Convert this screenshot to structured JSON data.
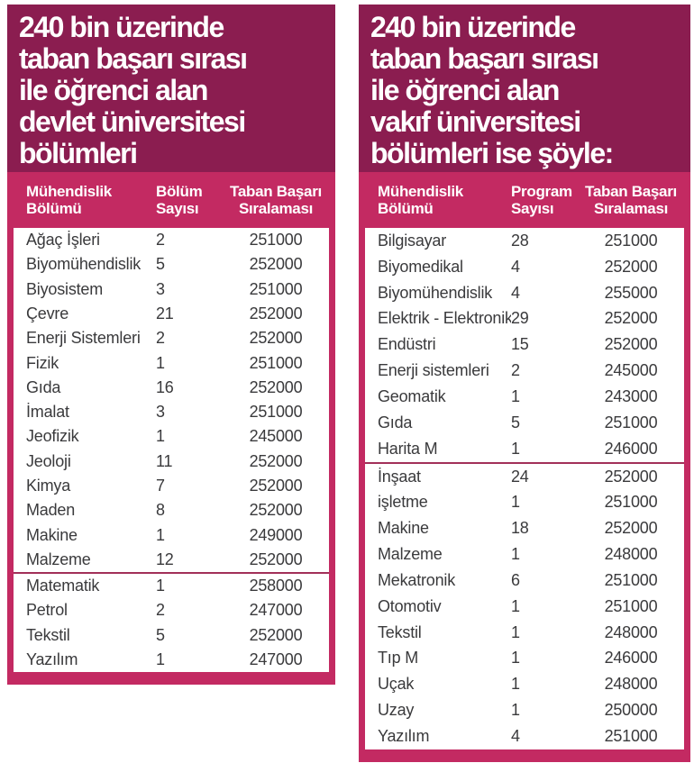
{
  "colors": {
    "title_bg": "#8b1d50",
    "accent": "#c32a62",
    "divider": "#a23059",
    "row_text": "#3a3a3c",
    "body_bg": "#ffffff"
  },
  "chart_data": [
    {
      "type": "table",
      "title": "240 bin üzerinde taban başarı sırası ile öğrenci alan devlet üniversitesi bölümleri",
      "title_display": "240 bin üzerinde\ntaban başarı sırası\nile öğrenci alan\ndevlet üniversitesi\nbölümleri",
      "columns": [
        "Mühendislik\nBölümü",
        "Bölüm\nSayısı",
        "Taban Başarı\nSıralaması"
      ],
      "rows": [
        {
          "name": "Ağaç İşleri",
          "count": "2",
          "rank": "251000"
        },
        {
          "name": "Biyomühendislik",
          "count": "5",
          "rank": "252000"
        },
        {
          "name": "Biyosistem",
          "count": "3",
          "rank": "251000"
        },
        {
          "name": "Çevre",
          "count": "21",
          "rank": "252000"
        },
        {
          "name": "Enerji Sistemleri",
          "count": "2",
          "rank": "252000"
        },
        {
          "name": "Fizik",
          "count": "1",
          "rank": "251000"
        },
        {
          "name": "Gıda",
          "count": "16",
          "rank": "252000"
        },
        {
          "name": "İmalat",
          "count": "3",
          "rank": "251000"
        },
        {
          "name": "Jeofizik",
          "count": "1",
          "rank": "245000"
        },
        {
          "name": "Jeoloji",
          "count": "11",
          "rank": "252000"
        },
        {
          "name": "Kimya",
          "count": "7",
          "rank": "252000"
        },
        {
          "name": "Maden",
          "count": "8",
          "rank": "252000"
        },
        {
          "name": "Makine",
          "count": "1",
          "rank": "249000"
        },
        {
          "name": "Malzeme",
          "count": "12",
          "rank": "252000"
        },
        {
          "name": "Matematik",
          "count": "1",
          "rank": "258000",
          "divider_above": true
        },
        {
          "name": "Petrol",
          "count": "2",
          "rank": "247000"
        },
        {
          "name": "Tekstil",
          "count": "5",
          "rank": "252000"
        },
        {
          "name": "Yazılım",
          "count": "1",
          "rank": "247000"
        }
      ]
    },
    {
      "type": "table",
      "title": "240 bin üzerinde taban başarı sırası ile öğrenci alan vakıf üniversitesi bölümleri ise şöyle:",
      "title_display": "240 bin üzerinde\ntaban başarı sırası\nile öğrenci alan\nvakıf üniversitesi\nbölümleri ise şöyle:",
      "columns": [
        "Mühendislik\nBölümü",
        "Program\nSayısı",
        "Taban Başarı\nSıralaması"
      ],
      "rows": [
        {
          "name": "Bilgisayar",
          "count": "28",
          "rank": "251000"
        },
        {
          "name": "Biyomedikal",
          "count": "4",
          "rank": "252000"
        },
        {
          "name": "Biyomühendislik",
          "count": "4",
          "rank": "255000"
        },
        {
          "name": "Elektrik - Elektronik",
          "count": "29",
          "rank": "252000"
        },
        {
          "name": "Endüstri",
          "count": "15",
          "rank": "252000"
        },
        {
          "name": "Enerji sistemleri",
          "count": "2",
          "rank": "245000"
        },
        {
          "name": "Geomatik",
          "count": "1",
          "rank": "243000"
        },
        {
          "name": "Gıda",
          "count": "5",
          "rank": "251000"
        },
        {
          "name": "Harita M",
          "count": "1",
          "rank": "246000"
        },
        {
          "name": "İnşaat",
          "count": "24",
          "rank": "252000",
          "divider_above": true
        },
        {
          "name": "işletme",
          "count": "1",
          "rank": "251000"
        },
        {
          "name": "Makine",
          "count": "18",
          "rank": "252000"
        },
        {
          "name": "Malzeme",
          "count": "1",
          "rank": "248000"
        },
        {
          "name": "Mekatronik",
          "count": "6",
          "rank": "251000"
        },
        {
          "name": "Otomotiv",
          "count": "1",
          "rank": "251000"
        },
        {
          "name": "Tekstil",
          "count": "1",
          "rank": "248000"
        },
        {
          "name": "Tıp M",
          "count": "1",
          "rank": "246000"
        },
        {
          "name": "Uçak",
          "count": "1",
          "rank": "248000"
        },
        {
          "name": "Uzay",
          "count": "1",
          "rank": "250000"
        },
        {
          "name": "Yazılım",
          "count": "4",
          "rank": "251000"
        }
      ]
    }
  ]
}
